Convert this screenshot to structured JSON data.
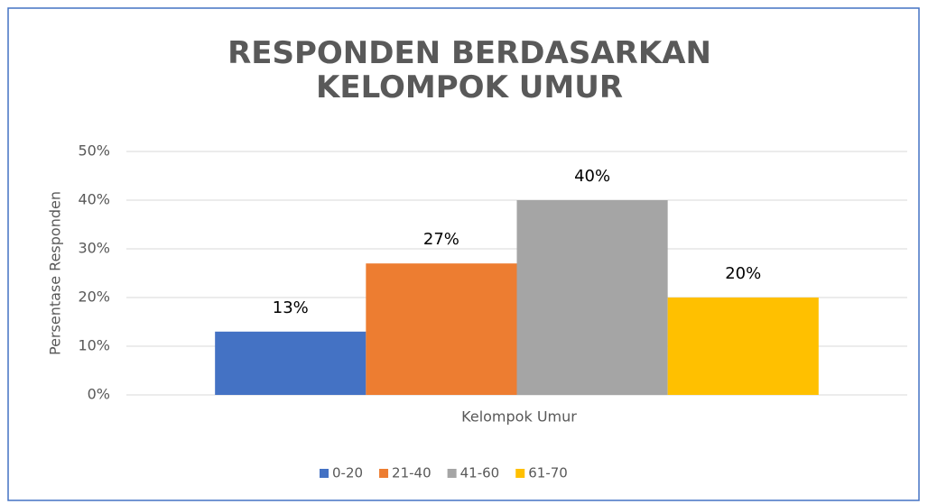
{
  "chart_data": {
    "type": "bar",
    "title": "RESPONDEN BERDASARKAN KELOMPOK UMUR",
    "x_label": "Kelompok Umur",
    "y_label": "Persentase Responden",
    "categories": [
      "Kelompok Umur"
    ],
    "series": [
      {
        "name": "0-20",
        "color": "#4472c4",
        "values": [
          13
        ],
        "value_labels": [
          "13%"
        ]
      },
      {
        "name": "21-40",
        "color": "#ed7d31",
        "values": [
          27
        ],
        "value_labels": [
          "27%"
        ]
      },
      {
        "name": "41-60",
        "color": "#a5a5a5",
        "values": [
          40
        ],
        "value_labels": [
          "40%"
        ]
      },
      {
        "name": "61-70",
        "color": "#ffc000",
        "values": [
          20
        ],
        "value_labels": [
          "20%"
        ]
      }
    ],
    "ylim": [
      0,
      50
    ],
    "yticks": [
      {
        "value": 0,
        "label": "0%"
      },
      {
        "value": 10,
        "label": "10%"
      },
      {
        "value": 20,
        "label": "20%"
      },
      {
        "value": 30,
        "label": "30%"
      },
      {
        "value": 40,
        "label": "40%"
      },
      {
        "value": 50,
        "label": "50%"
      }
    ],
    "grid": true,
    "legend": "bottom"
  }
}
